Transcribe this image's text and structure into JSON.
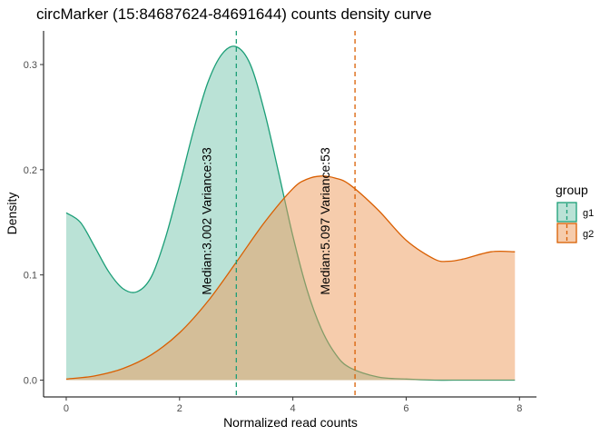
{
  "chart_data": {
    "type": "area",
    "title": "circMarker (15:84687624-84691644) counts density curve",
    "xlabel": "Normalized read counts",
    "ylabel": "Density",
    "xlim": [
      -0.4,
      8.3
    ],
    "ylim": [
      -0.016,
      0.332
    ],
    "x_ticks": [
      0,
      2,
      4,
      6,
      8
    ],
    "y_ticks": [
      0.0,
      0.1,
      0.2,
      0.3
    ],
    "x_tick_labels": [
      "0",
      "2",
      "4",
      "6",
      "8"
    ],
    "y_tick_labels": [
      "0.0",
      "0.1",
      "0.2",
      "0.3"
    ],
    "grid": false,
    "legend": {
      "title": "group",
      "position": "right"
    },
    "series": [
      {
        "name": "g1",
        "line_color": "#1b9e77",
        "fill_color": "#1b9e77",
        "fill_opacity": 0.3,
        "x": [
          0,
          0.25,
          0.5,
          0.75,
          1.0,
          1.25,
          1.5,
          1.75,
          2.0,
          2.25,
          2.5,
          2.75,
          3.0,
          3.25,
          3.5,
          3.75,
          4.0,
          4.25,
          4.5,
          4.75,
          5.0,
          5.5,
          6.0,
          6.5,
          7.0,
          7.5,
          7.92
        ],
        "y": [
          0.159,
          0.15,
          0.127,
          0.103,
          0.087,
          0.084,
          0.098,
          0.135,
          0.185,
          0.238,
          0.283,
          0.31,
          0.317,
          0.3,
          0.255,
          0.197,
          0.137,
          0.086,
          0.049,
          0.025,
          0.012,
          0.003,
          0.001,
          0.0,
          0.0,
          0.0,
          0.0
        ]
      },
      {
        "name": "g2",
        "line_color": "#d95f02",
        "fill_color": "#ee9a5a",
        "fill_opacity": 0.5,
        "x": [
          0,
          0.5,
          1.0,
          1.5,
          2.0,
          2.5,
          3.0,
          3.5,
          4.0,
          4.25,
          4.5,
          4.75,
          5.0,
          5.5,
          6.0,
          6.5,
          6.75,
          7.0,
          7.5,
          7.92
        ],
        "y": [
          0.001,
          0.004,
          0.011,
          0.024,
          0.045,
          0.075,
          0.112,
          0.15,
          0.182,
          0.191,
          0.194,
          0.192,
          0.186,
          0.162,
          0.133,
          0.115,
          0.113,
          0.115,
          0.122,
          0.122
        ]
      }
    ],
    "median_lines": [
      {
        "group": "g1",
        "x": 3.002,
        "color": "#1b9e77",
        "label": "Median:3.002 Variance:33"
      },
      {
        "group": "g2",
        "x": 5.097,
        "color": "#d95f02",
        "label": "Median:5.097 Variance:53"
      }
    ]
  }
}
